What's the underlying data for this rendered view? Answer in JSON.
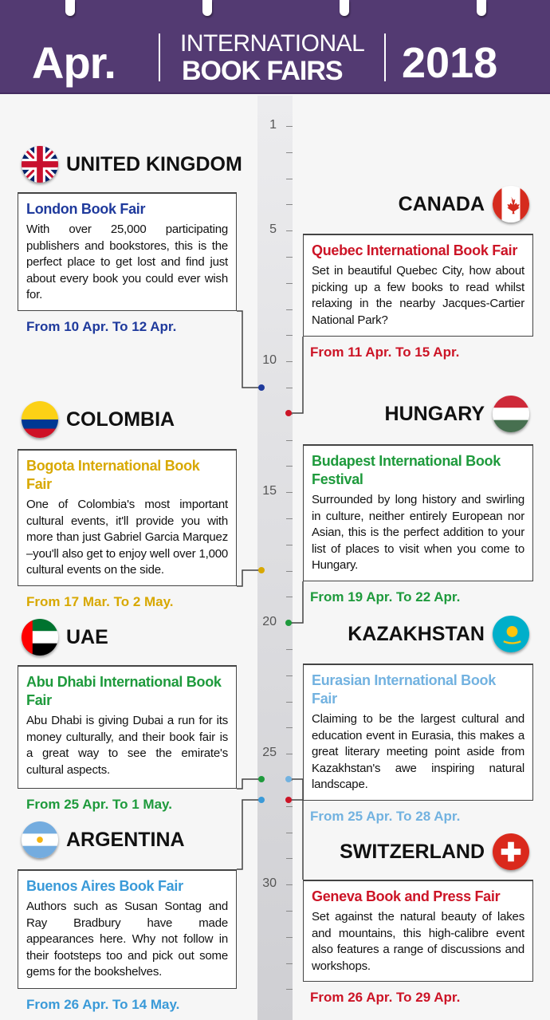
{
  "header": {
    "month": "Apr.",
    "title_line1": "INTERNATIONAL",
    "title_line2": "BOOK FAIRS",
    "year": "2018",
    "color": "#533a72"
  },
  "timeline": {
    "labels": [
      "1",
      "5",
      "10",
      "15",
      "20",
      "25",
      "30"
    ]
  },
  "fairs": [
    {
      "country": "UNITED KINGDOM",
      "flag": "uk-flag-icon",
      "name": "London Book Fair",
      "desc": "With over 25,000 participating publishers and bookstores, this is the perfect place to get lost and find just about every book you could ever wish for.",
      "date": "From 10 Apr. To 12 Apr.",
      "color": "#1f3a9c"
    },
    {
      "country": "CANADA",
      "flag": "canada-flag-icon",
      "name": "Quebec International Book Fair",
      "desc": "Set in beautiful Quebec City, how about picking up a few books to read whilst relaxing in the nearby Jacques-Cartier National Park?",
      "date": "From 11 Apr. To 15 Apr.",
      "color": "#cc1426"
    },
    {
      "country": "COLOMBIA",
      "flag": "colombia-flag-icon",
      "name": "Bogota International Book Fair",
      "desc": "One of Colombia's most important cultural events, it'll provide you with more than just Gabriel Garcia Marquez –you'll also get to enjoy well over 1,000 cultural events on the side.",
      "date": "From 17 Mar. To 2 May.",
      "color": "#d8a800"
    },
    {
      "country": "HUNGARY",
      "flag": "hungary-flag-icon",
      "name": "Budapest International Book Festival",
      "desc": "Surrounded by long history and swirling in culture, neither entirely European nor Asian, this is the perfect addition to your list of places to visit when you come to Hungary.",
      "date": "From 19 Apr. To 22 Apr.",
      "color": "#1e9a3c"
    },
    {
      "country": "UAE",
      "flag": "uae-flag-icon",
      "name": "Abu Dhabi International Book Fair",
      "desc": "Abu Dhabi is giving Dubai a run for its money culturally, and their book fair is a great way to see the emirate's cultural aspects.",
      "date": "From 25 Apr. To 1 May.",
      "color": "#1e9a3c"
    },
    {
      "country": "KAZAKHSTAN",
      "flag": "kazakhstan-flag-icon",
      "name": "Eurasian International Book Fair",
      "desc": "Claiming to be the largest cultural and education event in Eurasia, this makes a great literary meeting point aside from Kazakhstan's awe inspiring natural landscape.",
      "date": "From 25 Apr. To 28 Apr.",
      "color": "#72b2e0"
    },
    {
      "country": "ARGENTINA",
      "flag": "argentina-flag-icon",
      "name": "Buenos Aires Book Fair",
      "desc": "Authors such as Susan Sontag and Ray Bradbury have made appearances here. Why not follow in their footsteps too and pick out some gems for the bookshelves.",
      "date": "From 26 Apr. To 14 May.",
      "color": "#3a9ad8"
    },
    {
      "country": "SWITZERLAND",
      "flag": "switzerland-flag-icon",
      "name": "Geneva Book and Press Fair",
      "desc": "Set against the natural beauty of lakes and mountains, this high-calibre event also features a range of discussions and workshops.",
      "date": "From 26 Apr. To 29 Apr.",
      "color": "#cc1426"
    }
  ]
}
